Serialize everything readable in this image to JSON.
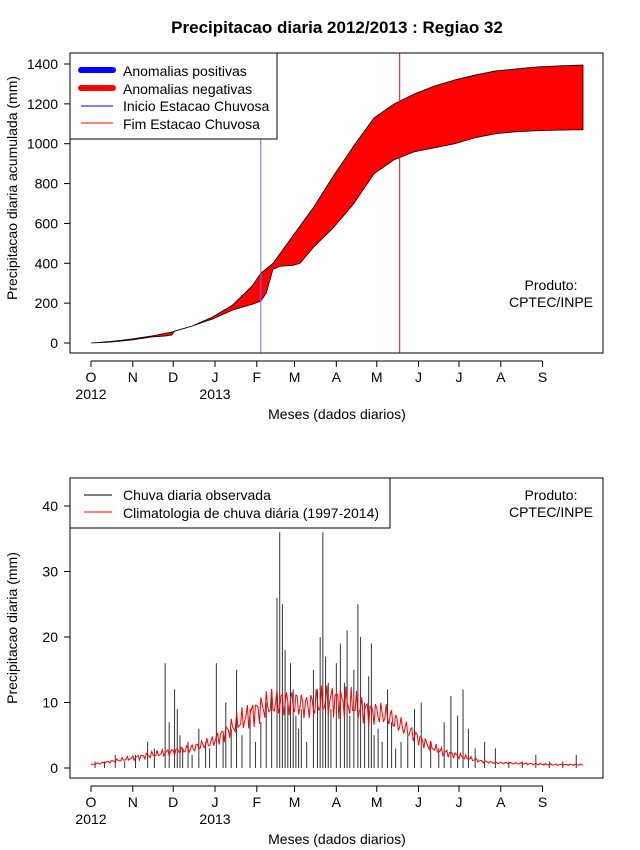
{
  "chart_data": [
    {
      "type": "area",
      "title": "Precipitacao diaria 2012/2013 : Regiao 32",
      "xlabel": "Meses (dados diarios)",
      "ylabel": "Precipitacao diaria acumulada (mm)",
      "ylim": [
        0,
        1400
      ],
      "yticks": [
        0,
        200,
        400,
        600,
        800,
        1000,
        1200,
        1400
      ],
      "xlim_days": [
        0,
        365
      ],
      "month_ticks": [
        {
          "label": "O",
          "day": 0
        },
        {
          "label": "N",
          "day": 31
        },
        {
          "label": "D",
          "day": 61
        },
        {
          "label": "J",
          "day": 92
        },
        {
          "label": "F",
          "day": 123
        },
        {
          "label": "M",
          "day": 151
        },
        {
          "label": "A",
          "day": 182
        },
        {
          "label": "M",
          "day": 212
        },
        {
          "label": "J",
          "day": 243
        },
        {
          "label": "J",
          "day": 273
        },
        {
          "label": "A",
          "day": 304
        },
        {
          "label": "S",
          "day": 335
        }
      ],
      "year_labels": [
        {
          "label": "2012",
          "day": 0
        },
        {
          "label": "2013",
          "day": 92
        }
      ],
      "legend": {
        "position": "top-left",
        "entries": [
          {
            "label": "Anomalias positivas",
            "color": "#0000ff",
            "style": "thick"
          },
          {
            "label": "Anomalias negativas",
            "color": "#ff0000",
            "style": "thick"
          },
          {
            "label": "Inicio Estacao Chuvosa",
            "color": "#0000ff",
            "style": "thin"
          },
          {
            "label": "Fim Estacao Chuvosa",
            "color": "#ff0000",
            "style": "thin"
          }
        ]
      },
      "credit": [
        "Produto:",
        "CPTEC/INPE"
      ],
      "inicio_estacao_day": 126,
      "fim_estacao_day": 229,
      "climatology_cumulative": {
        "day": [
          0,
          15,
          30,
          45,
          60,
          75,
          90,
          105,
          120,
          126,
          135,
          150,
          165,
          180,
          195,
          210,
          225,
          240,
          255,
          270,
          285,
          300,
          315,
          330,
          345,
          365
        ],
        "value": [
          0,
          8,
          20,
          35,
          55,
          85,
          130,
          190,
          290,
          350,
          400,
          540,
          680,
          840,
          990,
          1130,
          1200,
          1250,
          1290,
          1320,
          1345,
          1365,
          1375,
          1385,
          1390,
          1395
        ]
      },
      "observed_cumulative": {
        "day": [
          0,
          15,
          30,
          45,
          55,
          60,
          62,
          75,
          90,
          105,
          120,
          126,
          130,
          135,
          140,
          150,
          155,
          165,
          180,
          195,
          210,
          225,
          240,
          255,
          270,
          285,
          300,
          315,
          330,
          345,
          365
        ],
        "value": [
          0,
          5,
          15,
          30,
          35,
          40,
          60,
          85,
          120,
          165,
          195,
          210,
          250,
          370,
          385,
          390,
          400,
          480,
          580,
          700,
          850,
          920,
          960,
          980,
          1000,
          1030,
          1050,
          1060,
          1065,
          1068,
          1070
        ]
      },
      "fill_color": "#ff0000"
    },
    {
      "type": "line",
      "xlabel": "Meses (dados diarios)",
      "ylabel": "Precipitacao diaria (mm)",
      "ylim": [
        0,
        45
      ],
      "yticks": [
        0,
        10,
        20,
        30,
        40
      ],
      "xlim_days": [
        0,
        365
      ],
      "legend": {
        "position": "top-left",
        "entries": [
          {
            "label": "Chuva diaria observada",
            "color": "#000000"
          },
          {
            "label": "Climatologia de chuva diária (1997-2014)",
            "color": "#ff0000"
          }
        ]
      },
      "credit": [
        "Produto:",
        "CPTEC/INPE"
      ],
      "observed_daily_bars": {
        "day": [
          3,
          10,
          18,
          25,
          33,
          42,
          47,
          55,
          58,
          62,
          64,
          66,
          68,
          72,
          75,
          80,
          85,
          88,
          93,
          98,
          100,
          104,
          108,
          112,
          118,
          122,
          126,
          130,
          134,
          138,
          140,
          142,
          144,
          146,
          148,
          150,
          152,
          154,
          156,
          160,
          165,
          168,
          170,
          172,
          174,
          176,
          178,
          182,
          185,
          188,
          190,
          192,
          195,
          198,
          200,
          203,
          206,
          208,
          210,
          213,
          216,
          220,
          223,
          226,
          230,
          235,
          240,
          245,
          252,
          258,
          262,
          267,
          272,
          276,
          280,
          285,
          292,
          300,
          310,
          320,
          330,
          340,
          350,
          360
        ],
        "value": [
          1,
          1,
          2,
          1,
          2,
          4,
          3,
          16,
          7,
          12,
          9,
          5,
          3,
          4,
          2,
          6,
          4,
          3,
          16,
          5,
          10,
          6,
          15,
          5,
          9,
          4,
          7,
          10,
          12,
          26,
          36,
          25,
          18,
          10,
          16,
          12,
          8,
          6,
          9,
          4,
          15,
          12,
          20,
          36,
          17,
          13,
          9,
          16,
          19,
          13,
          21,
          8,
          15,
          25,
          20,
          10,
          14,
          19,
          5,
          6,
          4,
          12,
          7,
          3,
          4,
          5,
          9,
          10,
          4,
          3,
          7,
          11,
          8,
          12,
          6,
          3,
          4,
          3,
          1,
          1,
          2,
          1,
          1,
          2
        ]
      },
      "climatology_daily": {
        "day": [
          0,
          15,
          30,
          45,
          60,
          75,
          90,
          100,
          110,
          120,
          130,
          140,
          150,
          160,
          170,
          180,
          190,
          200,
          210,
          220,
          230,
          240,
          250,
          260,
          270,
          280,
          290,
          300,
          315,
          330,
          345,
          365
        ],
        "value": [
          0.5,
          1,
          1.5,
          2,
          2.5,
          3,
          4,
          5.5,
          7,
          8.5,
          9.5,
          10,
          10,
          9.5,
          10,
          10.5,
          10,
          9,
          8.5,
          8,
          6.5,
          5,
          3.5,
          2.5,
          2,
          1.5,
          1,
          0.8,
          0.7,
          0.6,
          0.5,
          0.5
        ]
      }
    }
  ]
}
